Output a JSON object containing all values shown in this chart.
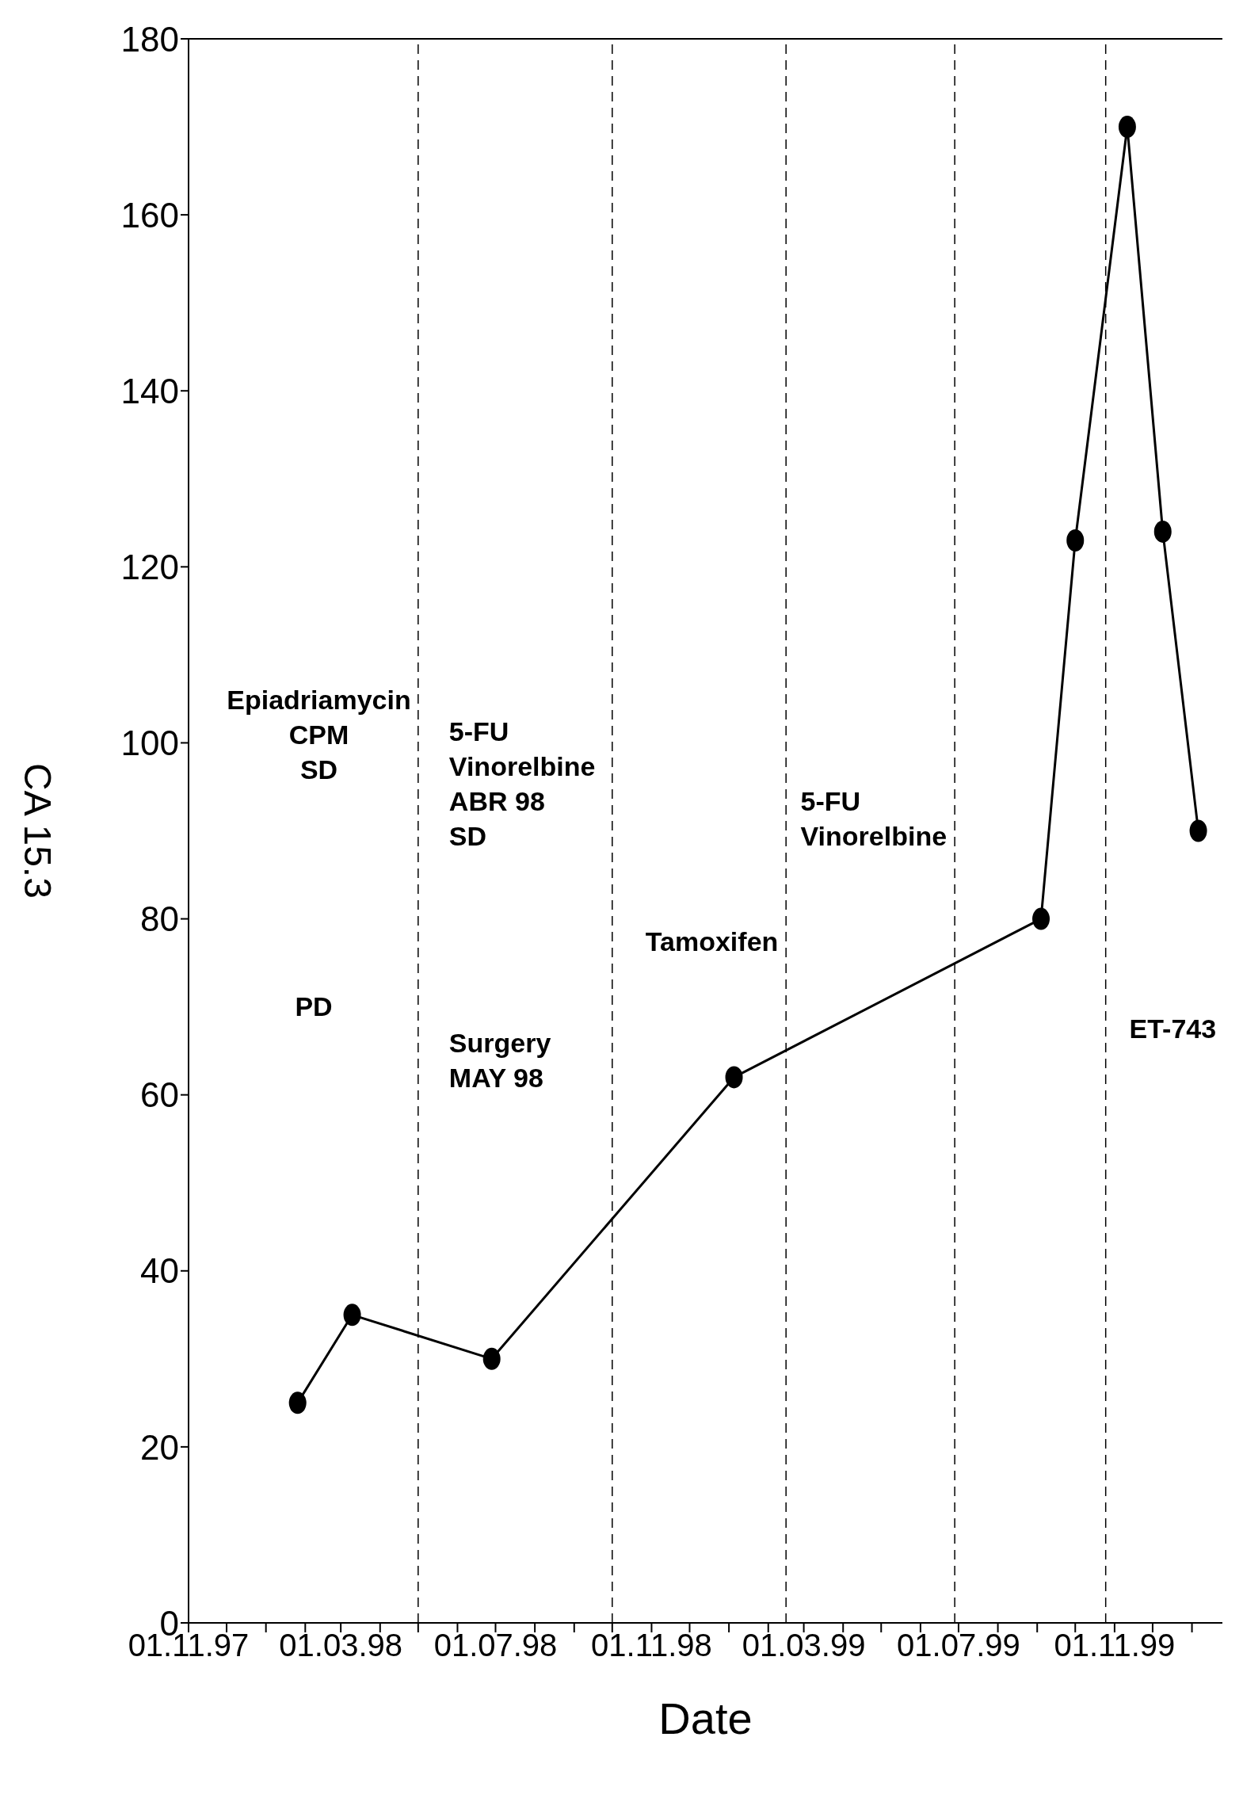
{
  "chart_data": {
    "type": "line",
    "xlabel": "Date",
    "ylabel": "CA 15.3",
    "x": [
      "1998-01-26",
      "1998-03-10",
      "1998-06-28",
      "1999-01-05",
      "1999-09-04",
      "1999-10-01",
      "1999-11-11",
      "1999-12-09",
      "2000-01-06"
    ],
    "series": [
      {
        "color": "#000000",
        "values": [
          25,
          35,
          30,
          62,
          80,
          123,
          170,
          124,
          90
        ]
      }
    ],
    "xlim": [
      "1997-11-01",
      "2000-01-25"
    ],
    "xticks": [
      {
        "value": "1997-11-01",
        "label": "01.11.97"
      },
      {
        "value": "1997-12-01",
        "label": null
      },
      {
        "value": "1998-01-01",
        "label": null
      },
      {
        "value": "1998-02-01",
        "label": null
      },
      {
        "value": "1998-03-01",
        "label": "01.03.98"
      },
      {
        "value": "1998-04-01",
        "label": null
      },
      {
        "value": "1998-05-01",
        "label": null
      },
      {
        "value": "1998-06-01",
        "label": null
      },
      {
        "value": "1998-07-01",
        "label": "01.07.98"
      },
      {
        "value": "1998-08-01",
        "label": null
      },
      {
        "value": "1998-09-01",
        "label": null
      },
      {
        "value": "1998-10-01",
        "label": null
      },
      {
        "value": "1998-11-01",
        "label": "01.11.98"
      },
      {
        "value": "1998-12-01",
        "label": null
      },
      {
        "value": "1999-01-01",
        "label": null
      },
      {
        "value": "1999-02-01",
        "label": null
      },
      {
        "value": "1999-03-01",
        "label": "01.03.99"
      },
      {
        "value": "1999-04-01",
        "label": null
      },
      {
        "value": "1999-05-01",
        "label": null
      },
      {
        "value": "1999-06-01",
        "label": null
      },
      {
        "value": "1999-07-01",
        "label": "01.07.99"
      },
      {
        "value": "1999-08-01",
        "label": null
      },
      {
        "value": "1999-09-01",
        "label": null
      },
      {
        "value": "1999-10-01",
        "label": null
      },
      {
        "value": "1999-11-01",
        "label": "01.11.99"
      },
      {
        "value": "1999-12-01",
        "label": null
      },
      {
        "value": "2000-01-01",
        "label": null
      }
    ],
    "ylim": [
      0,
      180
    ],
    "yticks": [
      0,
      20,
      40,
      60,
      80,
      100,
      120,
      140,
      160,
      180
    ],
    "grid": false,
    "marker": "circle",
    "line_style": "solid",
    "ref_lines": [
      {
        "axis": "x",
        "value": "1998-05-01",
        "color": "#000000",
        "line_style": "dashed"
      },
      {
        "axis": "x",
        "value": "1998-10-01",
        "color": "#000000",
        "line_style": "dashed"
      },
      {
        "axis": "x",
        "value": "1999-02-15",
        "color": "#000000",
        "line_style": "dashed"
      },
      {
        "axis": "x",
        "value": "1999-06-28",
        "color": "#000000",
        "line_style": "dashed"
      },
      {
        "axis": "x",
        "value": "1999-10-25",
        "color": "#000000",
        "line_style": "dashed"
      }
    ],
    "annotations": [
      "Epiadriamycin\nCPM\nSD",
      "PD",
      "5-FU\nVinorelbine\nABR 98\nSD",
      "Surgery\nMAY 98",
      "Tamoxifen",
      "5-FU\nVinorelbine",
      "ET-743"
    ]
  }
}
